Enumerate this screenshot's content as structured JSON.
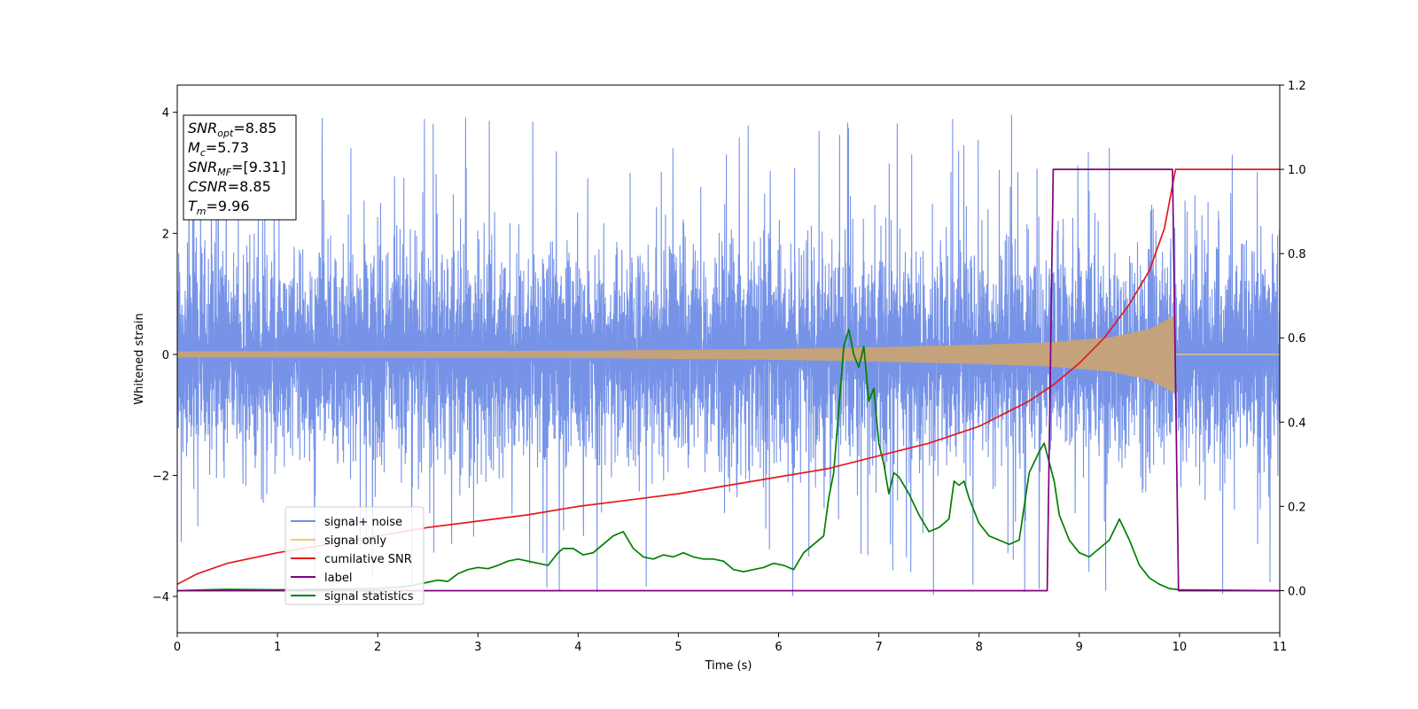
{
  "chart_data": {
    "type": "line",
    "xlabel": "Time (s)",
    "ylabel": "Whitened strain",
    "xlim": [
      0,
      11
    ],
    "ylim": [
      -4.6,
      4.45
    ],
    "y2lim": [
      -0.1,
      1.2
    ],
    "xticks": [
      "0",
      "1",
      "2",
      "3",
      "4",
      "5",
      "6",
      "7",
      "8",
      "9",
      "10",
      "11"
    ],
    "yticks": [
      "4",
      "2",
      "0",
      "−2",
      "−4"
    ],
    "y2ticks": [
      "1.2",
      "1.0",
      "0.8",
      "0.6",
      "0.4",
      "0.2",
      "0.0"
    ],
    "legend": {
      "placement": "lower-left",
      "entries": [
        "signal+ noise",
        "signal only",
        "cumilative SNR",
        "label",
        "signal statistics"
      ]
    },
    "annotation": {
      "lines": [
        {
          "base": "SNR",
          "sub": "opt",
          "value": "=8.85"
        },
        {
          "base": "M",
          "sub": "c",
          "value": "=5.73"
        },
        {
          "base": "SNR",
          "sub": "MF",
          "value": "=[9.31]"
        },
        {
          "base": "CSNR",
          "sub": "",
          "value": "=8.85"
        },
        {
          "base": "T",
          "sub": "m",
          "value": "=9.96"
        }
      ]
    },
    "series": [
      {
        "name": "signal+ noise",
        "axis": "left",
        "color": "#6f8de6",
        "noise_std": 1.0,
        "range": [
          -4.15,
          4.05
        ]
      },
      {
        "name": "signal only",
        "axis": "left",
        "color": "#f5c47a",
        "envelope": [
          [
            0,
            0.05
          ],
          [
            4,
            0.06
          ],
          [
            6,
            0.09
          ],
          [
            7,
            0.12
          ],
          [
            8,
            0.16
          ],
          [
            8.7,
            0.2
          ],
          [
            9.3,
            0.28
          ],
          [
            9.7,
            0.42
          ],
          [
            9.96,
            0.65
          ]
        ],
        "end": 9.96
      },
      {
        "name": "cumilative SNR",
        "axis": "right",
        "color": "#e41a1c",
        "x": [
          0,
          0.2,
          0.5,
          1,
          1.5,
          2,
          2.5,
          3,
          3.5,
          4,
          4.5,
          5,
          5.5,
          6,
          6.5,
          7,
          7.5,
          8,
          8.5,
          8.75,
          9,
          9.25,
          9.5,
          9.7,
          9.85,
          9.96,
          10,
          11
        ],
        "y": [
          0.015,
          0.04,
          0.065,
          0.09,
          0.11,
          0.13,
          0.15,
          0.165,
          0.18,
          0.2,
          0.215,
          0.23,
          0.25,
          0.27,
          0.29,
          0.32,
          0.35,
          0.39,
          0.45,
          0.49,
          0.54,
          0.6,
          0.68,
          0.76,
          0.86,
          1.0,
          1.0,
          1.0
        ]
      },
      {
        "name": "label",
        "axis": "right",
        "color": "#800080",
        "x": [
          0,
          8.68,
          8.74,
          9.93,
          9.99,
          11
        ],
        "y": [
          0,
          0,
          1,
          1,
          0,
          0
        ]
      },
      {
        "name": "signal statistics",
        "axis": "right",
        "color": "#008000",
        "x": [
          0,
          0.3,
          0.5,
          1,
          2,
          2.3,
          2.5,
          2.6,
          2.7,
          2.8,
          2.9,
          3.0,
          3.1,
          3.2,
          3.3,
          3.4,
          3.5,
          3.6,
          3.7,
          3.8,
          3.85,
          3.95,
          4.05,
          4.15,
          4.25,
          4.35,
          4.45,
          4.55,
          4.65,
          4.75,
          4.85,
          4.95,
          5.05,
          5.15,
          5.25,
          5.35,
          5.45,
          5.55,
          5.65,
          5.75,
          5.85,
          5.95,
          6.05,
          6.15,
          6.25,
          6.35,
          6.45,
          6.5,
          6.55,
          6.6,
          6.65,
          6.7,
          6.75,
          6.8,
          6.85,
          6.9,
          6.95,
          7.0,
          7.05,
          7.1,
          7.15,
          7.2,
          7.3,
          7.4,
          7.5,
          7.6,
          7.7,
          7.75,
          7.8,
          7.85,
          7.9,
          8.0,
          8.1,
          8.2,
          8.3,
          8.4,
          8.5,
          8.6,
          8.65,
          8.75,
          8.8,
          8.9,
          9.0,
          9.1,
          9.2,
          9.3,
          9.4,
          9.5,
          9.6,
          9.7,
          9.8,
          9.9,
          10,
          11
        ],
        "y": [
          0,
          0.002,
          0.003,
          0.002,
          0.005,
          0.01,
          0.02,
          0.025,
          0.022,
          0.04,
          0.05,
          0.055,
          0.052,
          0.06,
          0.07,
          0.075,
          0.07,
          0.065,
          0.06,
          0.09,
          0.1,
          0.1,
          0.085,
          0.09,
          0.11,
          0.13,
          0.14,
          0.1,
          0.08,
          0.075,
          0.085,
          0.08,
          0.09,
          0.08,
          0.075,
          0.075,
          0.07,
          0.05,
          0.045,
          0.05,
          0.055,
          0.065,
          0.06,
          0.05,
          0.09,
          0.11,
          0.13,
          0.22,
          0.28,
          0.43,
          0.58,
          0.62,
          0.56,
          0.53,
          0.58,
          0.45,
          0.48,
          0.35,
          0.3,
          0.23,
          0.28,
          0.27,
          0.23,
          0.18,
          0.14,
          0.15,
          0.17,
          0.26,
          0.25,
          0.26,
          0.22,
          0.16,
          0.13,
          0.12,
          0.11,
          0.12,
          0.28,
          0.33,
          0.35,
          0.26,
          0.18,
          0.12,
          0.09,
          0.08,
          0.1,
          0.12,
          0.17,
          0.12,
          0.06,
          0.03,
          0.015,
          0.005,
          0.002,
          0.0
        ]
      }
    ]
  }
}
